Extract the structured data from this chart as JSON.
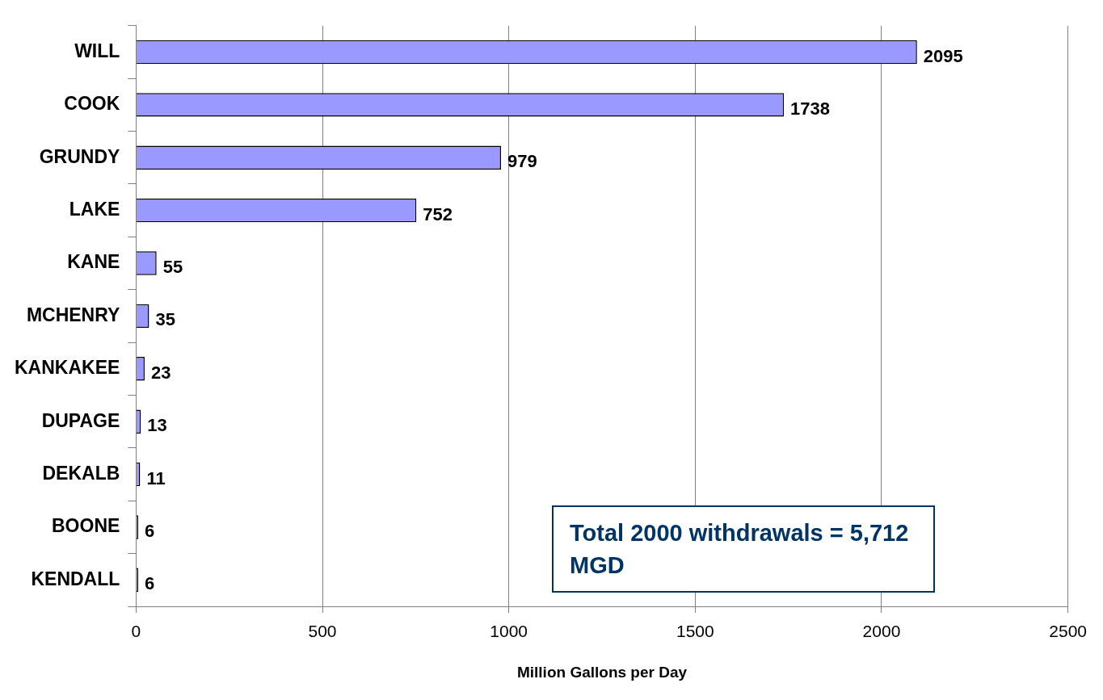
{
  "chart_data": {
    "type": "bar",
    "orientation": "horizontal",
    "xlabel": "Million Gallons per Day",
    "categories": [
      "WILL",
      "COOK",
      "GRUNDY",
      "LAKE",
      "KANE",
      "MCHENRY",
      "KANKAKEE",
      "DUPAGE",
      "DEKALB",
      "BOONE",
      "KENDALL"
    ],
    "values": [
      2095,
      1738,
      979,
      752,
      55,
      35,
      23,
      13,
      11,
      6,
      6
    ],
    "color": "#9999ff",
    "xlim": [
      0,
      2500
    ],
    "xticks": [
      0,
      500,
      1000,
      1500,
      2000,
      2500
    ],
    "grid": "x",
    "data_labels": true,
    "legend": false,
    "annotations": [
      "Total 2000 withdrawals = 5,712 MGD"
    ]
  }
}
